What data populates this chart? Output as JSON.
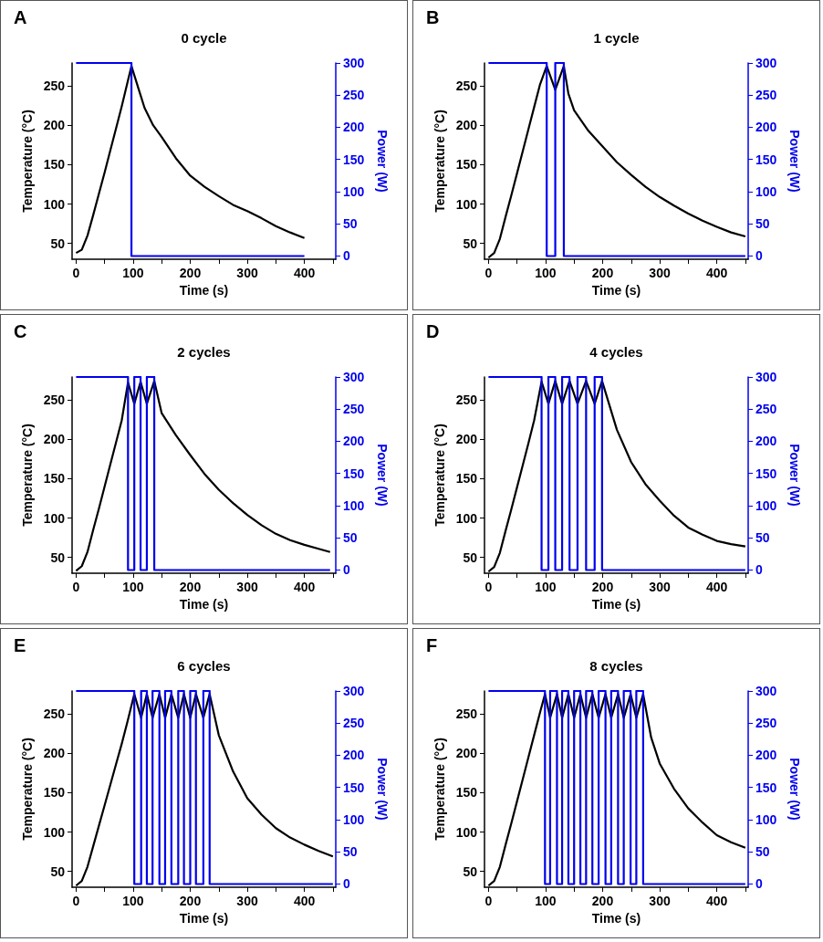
{
  "chart_data": [
    {
      "type": "line",
      "title": "0 cycle",
      "annotations": [
        "A"
      ],
      "xlabel": "Time (s)",
      "ylabel": "Temperature (°C)",
      "y2label": "Power (W)",
      "marker": "none",
      "xlim": [
        -7,
        455
      ],
      "xticks": [
        0,
        {
          "value": 50,
          "label": null
        },
        100,
        {
          "value": 150,
          "label": null
        },
        200,
        {
          "value": 250,
          "label": null
        },
        300,
        {
          "value": 350,
          "label": null
        },
        400,
        {
          "value": 450,
          "label": null
        }
      ],
      "ylim": [
        30,
        279
      ],
      "yticks": [
        50,
        100,
        150,
        200,
        250
      ],
      "y2lim": [
        -5,
        300
      ],
      "y2ticks": [
        0,
        50,
        100,
        150,
        200,
        250,
        300
      ],
      "series": [
        {
          "type": "line",
          "color": "#000000",
          "x": [
            0,
            10,
            20,
            30,
            40,
            50,
            60,
            70,
            80,
            90,
            97,
            110,
            120,
            135,
            150,
            175,
            200,
            225,
            250,
            275,
            300,
            325,
            350,
            375,
            400
          ],
          "values": [
            38,
            42,
            60,
            86,
            113,
            140,
            168,
            196,
            224,
            254,
            275,
            245,
            222,
            200,
            185,
            158,
            136,
            122,
            110,
            99,
            91,
            82,
            72,
            64,
            57
          ]
        },
        {
          "type": "step",
          "axis": "y2",
          "color": "#0000ee",
          "x": [
            0,
            97,
            400
          ],
          "values": [
            300,
            0,
            0
          ]
        }
      ]
    },
    {
      "type": "line",
      "title": "1 cycle",
      "annotations": [
        "B"
      ],
      "xlabel": "Time (s)",
      "ylabel": "Temperature (°C)",
      "y2label": "Power (W)",
      "marker": "none",
      "xlim": [
        -7,
        455
      ],
      "xticks": [
        0,
        {
          "value": 50,
          "label": null
        },
        100,
        {
          "value": 150,
          "label": null
        },
        200,
        {
          "value": 250,
          "label": null
        },
        300,
        {
          "value": 350,
          "label": null
        },
        400,
        {
          "value": 450,
          "label": null
        }
      ],
      "ylim": [
        30,
        279
      ],
      "yticks": [
        50,
        100,
        150,
        200,
        250
      ],
      "y2lim": [
        -5,
        300
      ],
      "y2ticks": [
        0,
        50,
        100,
        150,
        200,
        250,
        300
      ],
      "series": [
        {
          "type": "line",
          "color": "#000000",
          "x": [
            0,
            10,
            20,
            30,
            40,
            50,
            60,
            70,
            80,
            90,
            102,
            117,
            132,
            140,
            150,
            175,
            200,
            225,
            250,
            275,
            300,
            325,
            350,
            375,
            400,
            425,
            450
          ],
          "values": [
            32,
            38,
            56,
            84,
            111,
            139,
            167,
            195,
            223,
            251,
            275,
            245,
            275,
            240,
            219,
            193,
            173,
            153,
            137,
            122,
            109,
            98,
            88,
            79,
            71,
            64,
            59
          ]
        },
        {
          "type": "step",
          "axis": "y2",
          "color": "#0000ee",
          "x": [
            0,
            102,
            117,
            132,
            450
          ],
          "values": [
            300,
            0,
            300,
            0,
            0
          ]
        }
      ]
    },
    {
      "type": "line",
      "title": "2 cycles",
      "annotations": [
        "C"
      ],
      "xlabel": "Time (s)",
      "ylabel": "Temperature (°C)",
      "y2label": "Power (W)",
      "marker": "none",
      "xlim": [
        -7,
        455
      ],
      "xticks": [
        0,
        {
          "value": 50,
          "label": null
        },
        100,
        {
          "value": 150,
          "label": null
        },
        200,
        {
          "value": 250,
          "label": null
        },
        300,
        {
          "value": 350,
          "label": null
        },
        400,
        {
          "value": 450,
          "label": null
        }
      ],
      "ylim": [
        30,
        279
      ],
      "yticks": [
        50,
        100,
        150,
        200,
        250
      ],
      "y2lim": [
        -5,
        300
      ],
      "y2ticks": [
        0,
        50,
        100,
        150,
        200,
        250,
        300
      ],
      "series": [
        {
          "type": "line",
          "color": "#000000",
          "x": [
            0,
            10,
            20,
            30,
            40,
            50,
            60,
            70,
            80,
            91,
            102,
            113,
            124,
            137,
            150,
            175,
            200,
            225,
            250,
            275,
            300,
            325,
            350,
            375,
            400,
            425,
            445
          ],
          "values": [
            33,
            39,
            57,
            85,
            112,
            140,
            168,
            196,
            224,
            272,
            245,
            273,
            245,
            274,
            233,
            205,
            180,
            156,
            136,
            119,
            104,
            91,
            80,
            72,
            66,
            61,
            57
          ]
        },
        {
          "type": "step",
          "axis": "y2",
          "color": "#0000ee",
          "x": [
            0,
            91,
            102,
            113,
            124,
            137,
            445
          ],
          "values": [
            300,
            0,
            300,
            0,
            300,
            0,
            0
          ]
        }
      ]
    },
    {
      "type": "line",
      "title": "4 cycles",
      "annotations": [
        "D"
      ],
      "xlabel": "Time (s)",
      "ylabel": "Temperature (°C)",
      "y2label": "Power (W)",
      "marker": "none",
      "xlim": [
        -7,
        455
      ],
      "xticks": [
        0,
        {
          "value": 50,
          "label": null
        },
        100,
        {
          "value": 150,
          "label": null
        },
        200,
        {
          "value": 250,
          "label": null
        },
        300,
        {
          "value": 350,
          "label": null
        },
        400,
        {
          "value": 450,
          "label": null
        }
      ],
      "ylim": [
        30,
        279
      ],
      "yticks": [
        50,
        100,
        150,
        200,
        250
      ],
      "y2lim": [
        -5,
        300
      ],
      "y2ticks": [
        0,
        50,
        100,
        150,
        200,
        250,
        300
      ],
      "series": [
        {
          "type": "line",
          "color": "#000000",
          "x": [
            0,
            10,
            20,
            30,
            40,
            50,
            60,
            70,
            80,
            93,
            105,
            117,
            129,
            142,
            156,
            171,
            186,
            199,
            225,
            250,
            275,
            300,
            325,
            350,
            375,
            400,
            425,
            450
          ],
          "values": [
            32,
            38,
            56,
            84,
            111,
            139,
            167,
            195,
            224,
            273,
            245,
            274,
            245,
            274,
            245,
            274,
            245,
            274,
            212,
            171,
            143,
            122,
            103,
            88,
            79,
            71,
            67,
            64
          ]
        },
        {
          "type": "step",
          "axis": "y2",
          "color": "#0000ee",
          "x": [
            0,
            93,
            105,
            117,
            129,
            142,
            156,
            171,
            186,
            199,
            450
          ],
          "values": [
            300,
            0,
            300,
            0,
            300,
            0,
            300,
            0,
            300,
            0,
            0
          ]
        }
      ]
    },
    {
      "type": "line",
      "title": "6 cycles",
      "annotations": [
        "E"
      ],
      "xlabel": "Time (s)",
      "ylabel": "Temperature (°C)",
      "y2label": "Power (W)",
      "marker": "none",
      "xlim": [
        -7,
        455
      ],
      "xticks": [
        0,
        {
          "value": 50,
          "label": null
        },
        100,
        {
          "value": 150,
          "label": null
        },
        200,
        {
          "value": 250,
          "label": null
        },
        300,
        {
          "value": 350,
          "label": null
        },
        400,
        {
          "value": 450,
          "label": null
        }
      ],
      "ylim": [
        30,
        279
      ],
      "yticks": [
        50,
        100,
        150,
        200,
        250
      ],
      "y2lim": [
        -5,
        300
      ],
      "y2ticks": [
        0,
        50,
        100,
        150,
        200,
        250,
        300
      ],
      "series": [
        {
          "type": "line",
          "color": "#000000",
          "x": [
            0,
            10,
            20,
            30,
            40,
            50,
            60,
            70,
            80,
            90,
            102,
            114,
            124,
            134,
            146,
            156,
            167,
            179,
            189,
            200,
            210,
            223,
            234,
            250,
            275,
            300,
            325,
            350,
            375,
            400,
            425,
            450
          ],
          "values": [
            32,
            38,
            56,
            82,
            108,
            134,
            160,
            186,
            212,
            240,
            275,
            245,
            275,
            245,
            275,
            245,
            275,
            245,
            275,
            245,
            275,
            245,
            275,
            223,
            177,
            143,
            122,
            105,
            93,
            84,
            76,
            69
          ]
        },
        {
          "type": "step",
          "axis": "y2",
          "color": "#0000ee",
          "x": [
            0,
            102,
            114,
            124,
            134,
            146,
            156,
            167,
            179,
            189,
            200,
            210,
            223,
            234,
            450
          ],
          "values": [
            300,
            0,
            300,
            0,
            300,
            0,
            300,
            0,
            300,
            0,
            300,
            0,
            300,
            0,
            0
          ]
        }
      ]
    },
    {
      "type": "line",
      "title": "8 cycles",
      "annotations": [
        "F"
      ],
      "xlabel": "Time (s)",
      "ylabel": "Temperature (°C)",
      "y2label": "Power (W)",
      "marker": "none",
      "xlim": [
        -7,
        455
      ],
      "xticks": [
        0,
        {
          "value": 50,
          "label": null
        },
        100,
        {
          "value": 150,
          "label": null
        },
        200,
        {
          "value": 250,
          "label": null
        },
        300,
        {
          "value": 350,
          "label": null
        },
        400,
        {
          "value": 450,
          "label": null
        }
      ],
      "ylim": [
        30,
        279
      ],
      "yticks": [
        50,
        100,
        150,
        200,
        250
      ],
      "y2lim": [
        -5,
        300
      ],
      "y2ticks": [
        0,
        50,
        100,
        150,
        200,
        250,
        300
      ],
      "series": [
        {
          "type": "line",
          "color": "#000000",
          "x": [
            0,
            10,
            20,
            30,
            40,
            50,
            60,
            70,
            80,
            90,
            99,
            108,
            120,
            129,
            140,
            150,
            161,
            171,
            182,
            193,
            205,
            215,
            227,
            237,
            249,
            259,
            271,
            285,
            300,
            325,
            350,
            375,
            400,
            425,
            450
          ],
          "values": [
            32,
            38,
            56,
            84,
            111,
            139,
            167,
            195,
            223,
            251,
            275,
            245,
            275,
            245,
            275,
            245,
            275,
            245,
            275,
            245,
            275,
            245,
            275,
            245,
            275,
            245,
            275,
            220,
            187,
            155,
            130,
            112,
            96,
            87,
            80
          ]
        },
        {
          "type": "step",
          "axis": "y2",
          "color": "#0000ee",
          "x": [
            0,
            99,
            108,
            120,
            129,
            140,
            150,
            161,
            171,
            182,
            193,
            205,
            215,
            227,
            237,
            249,
            259,
            271,
            450
          ],
          "values": [
            300,
            0,
            300,
            0,
            300,
            0,
            300,
            0,
            300,
            0,
            300,
            0,
            300,
            0,
            300,
            0,
            300,
            0,
            0
          ]
        }
      ]
    }
  ]
}
